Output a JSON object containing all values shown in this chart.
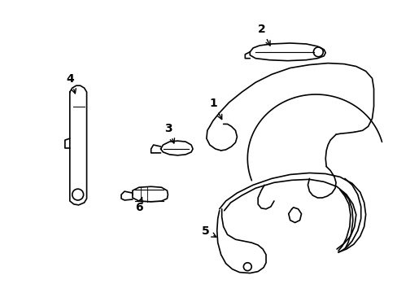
{
  "background_color": "#ffffff",
  "line_color": "#000000",
  "line_width": 1.2,
  "figsize": [
    4.89,
    3.6
  ],
  "dpi": 100
}
